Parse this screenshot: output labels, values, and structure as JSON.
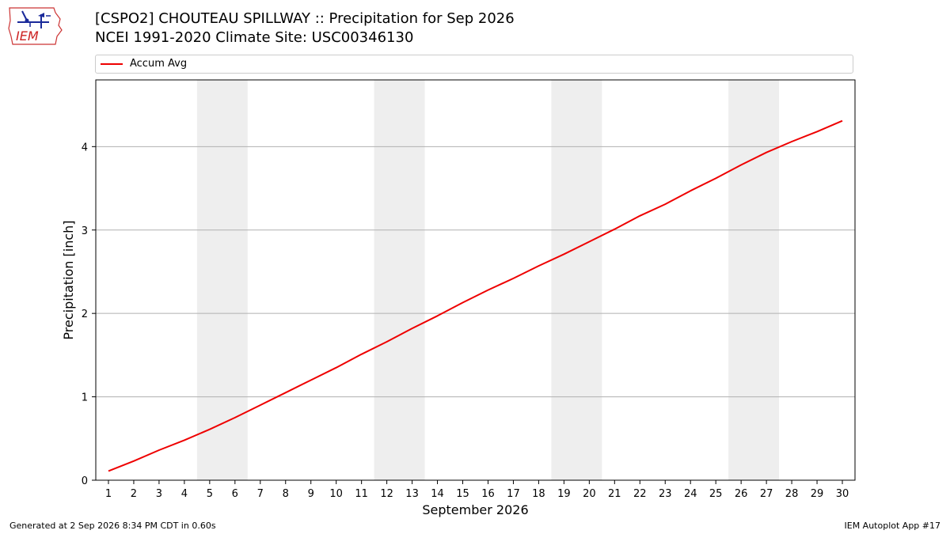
{
  "header": {
    "title_line1": "[CSPO2] CHOUTEAU SPILLWAY :: Precipitation for Sep 2026",
    "title_line2": "NCEI 1991-2020 Climate Site: USC00346130"
  },
  "logo": {
    "text": "IEM",
    "icon": "iem-iowa-logo-icon"
  },
  "footer": {
    "generated": "Generated at 2 Sep 2026 8:34 PM CDT in 0.60s",
    "app": "IEM Autoplot App #17"
  },
  "chart_data": {
    "type": "line",
    "xlabel": "September 2026",
    "ylabel": "Precipitation [inch]",
    "xlim": [
      0.5,
      30.5
    ],
    "ylim": [
      0,
      4.8
    ],
    "yticks": [
      0,
      1,
      2,
      3,
      4
    ],
    "grid": "horizontal",
    "legend": "top",
    "weekend_shading": [
      [
        4.5,
        6.5
      ],
      [
        11.5,
        13.5
      ],
      [
        18.5,
        20.5
      ],
      [
        25.5,
        27.5
      ]
    ],
    "series": [
      {
        "name": "Accum Avg",
        "color": "#ee0000",
        "x": [
          1,
          2,
          3,
          4,
          5,
          6,
          7,
          8,
          9,
          10,
          11,
          12,
          13,
          14,
          15,
          16,
          17,
          18,
          19,
          20,
          21,
          22,
          23,
          24,
          25,
          26,
          27,
          28,
          29,
          30
        ],
        "values": [
          0.11,
          0.23,
          0.36,
          0.48,
          0.61,
          0.75,
          0.9,
          1.05,
          1.2,
          1.35,
          1.51,
          1.66,
          1.82,
          1.97,
          2.13,
          2.28,
          2.42,
          2.57,
          2.71,
          2.86,
          3.01,
          3.17,
          3.31,
          3.47,
          3.62,
          3.78,
          3.93,
          4.06,
          4.18,
          4.31
        ]
      }
    ]
  }
}
